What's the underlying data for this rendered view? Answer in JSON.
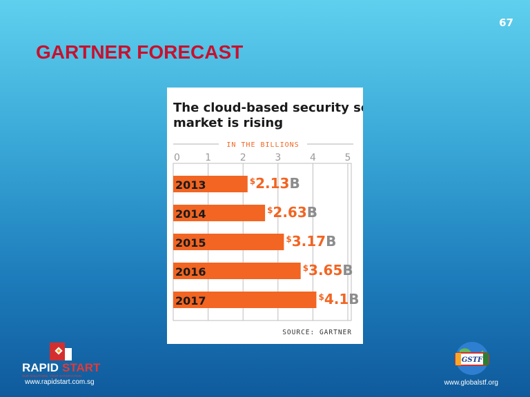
{
  "slide": {
    "page_number": "67",
    "title": "GARTNER FORECAST"
  },
  "chart_data": {
    "type": "bar",
    "orientation": "horizontal",
    "title": "The cloud-based security services market is rising",
    "subtitle": "IN THE BILLIONS",
    "source": "SOURCE: GARTNER",
    "categories": [
      "2013",
      "2014",
      "2015",
      "2016",
      "2017"
    ],
    "values": [
      2.13,
      2.63,
      3.17,
      3.65,
      4.1
    ],
    "value_labels": [
      {
        "prefix": "$",
        "number": "2.13",
        "suffix": "B"
      },
      {
        "prefix": "$",
        "number": "2.63",
        "suffix": "B"
      },
      {
        "prefix": "$",
        "number": "3.17",
        "suffix": "B"
      },
      {
        "prefix": "$",
        "number": "3.65",
        "suffix": "B"
      },
      {
        "prefix": "$",
        "number": "4.1",
        "suffix": "B"
      }
    ],
    "xticks": [
      "0",
      "1",
      "2",
      "3",
      "4",
      "5"
    ],
    "xlim": [
      0,
      5
    ],
    "grid": true,
    "bar_color": "#f26522",
    "label_color": "#f26522",
    "suffix_color": "#8c8c8c"
  },
  "footer": {
    "left_logo": {
      "brand_main": "RAPID",
      "brand_accent": "START",
      "tagline": "OUR SOLUTIONS, YOUR SATISFACTION"
    },
    "left_url": "www.rapidstart.com.sg",
    "right_logo": {
      "text": "GSTF"
    },
    "right_url": "www.globalstf.org"
  }
}
